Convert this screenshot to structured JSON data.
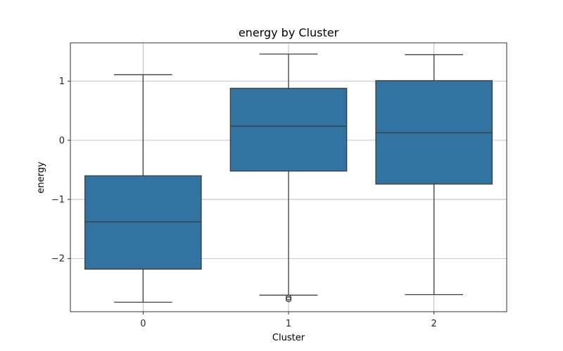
{
  "chart_data": {
    "type": "box",
    "title": "energy by Cluster",
    "xlabel": "Cluster",
    "ylabel": "energy",
    "categories": [
      "0",
      "1",
      "2"
    ],
    "ylim": [
      -2.9,
      1.65
    ],
    "yticks": [
      {
        "value": 1,
        "label": "1"
      },
      {
        "value": 0,
        "label": "0"
      },
      {
        "value": -1,
        "label": "−1"
      },
      {
        "value": -2,
        "label": "−2"
      }
    ],
    "grid": true,
    "box_color": "#3274a1",
    "line_color": "#3d3d3d",
    "boxes": [
      {
        "category": "0",
        "whisker_low": -2.74,
        "q1": -2.18,
        "median": -1.38,
        "q3": -0.6,
        "whisker_high": 1.11,
        "outliers": []
      },
      {
        "category": "1",
        "whisker_low": -2.62,
        "q1": -0.52,
        "median": 0.24,
        "q3": 0.88,
        "whisker_high": 1.46,
        "outliers": [
          -2.66,
          -2.69
        ]
      },
      {
        "category": "2",
        "whisker_low": -2.61,
        "q1": -0.74,
        "median": 0.13,
        "q3": 1.01,
        "whisker_high": 1.45,
        "outliers": []
      }
    ]
  }
}
